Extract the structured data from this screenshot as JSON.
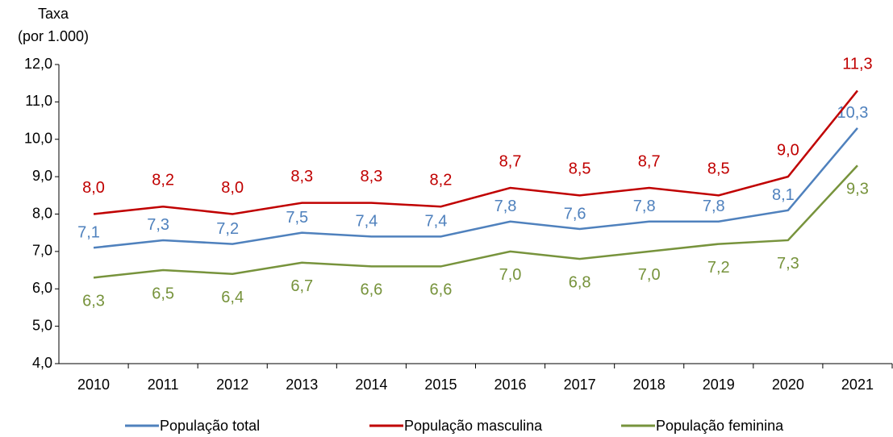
{
  "chart_data": {
    "type": "line",
    "y_label": [
      "Taxa",
      "(por 1.000)"
    ],
    "categories": [
      "2010",
      "2011",
      "2012",
      "2013",
      "2014",
      "2015",
      "2016",
      "2017",
      "2018",
      "2019",
      "2020",
      "2021"
    ],
    "series": [
      {
        "name": "População total",
        "color": "#4f81bd",
        "values": [
          7.1,
          7.3,
          7.2,
          7.5,
          7.4,
          7.4,
          7.8,
          7.6,
          7.8,
          7.8,
          8.1,
          10.3
        ],
        "value_labels": [
          "7,1",
          "7,3",
          "7,2",
          "7,5",
          "7,4",
          "7,4",
          "7,8",
          "7,6",
          "7,8",
          "7,8",
          "8,1",
          "10,3"
        ]
      },
      {
        "name": "População masculina",
        "color": "#c00000",
        "values": [
          8.0,
          8.2,
          8.0,
          8.3,
          8.3,
          8.2,
          8.7,
          8.5,
          8.7,
          8.5,
          9.0,
          11.3
        ],
        "value_labels": [
          "8,0",
          "8,2",
          "8,0",
          "8,3",
          "8,3",
          "8,2",
          "8,7",
          "8,5",
          "8,7",
          "8,5",
          "9,0",
          "11,3"
        ]
      },
      {
        "name": "População feminina",
        "color": "#77933c",
        "values": [
          6.3,
          6.5,
          6.4,
          6.7,
          6.6,
          6.6,
          7.0,
          6.8,
          7.0,
          7.2,
          7.3,
          9.3
        ],
        "value_labels": [
          "6,3",
          "6,5",
          "6,4",
          "6,7",
          "6,6",
          "6,6",
          "7,0",
          "6,8",
          "7,0",
          "7,2",
          "7,3",
          "9,3"
        ]
      }
    ],
    "ylim": [
      4,
      12
    ],
    "yticks": [
      {
        "value": 4,
        "label": "4,0"
      },
      {
        "value": 5,
        "label": "5,0"
      },
      {
        "value": 6,
        "label": "6,0"
      },
      {
        "value": 7,
        "label": "7,0"
      },
      {
        "value": 8,
        "label": "8,0"
      },
      {
        "value": 9,
        "label": "9,0"
      },
      {
        "value": 10,
        "label": "10,0"
      },
      {
        "value": 11,
        "label": "11,0"
      },
      {
        "value": 12,
        "label": "12,0"
      }
    ],
    "grid": false,
    "legend": "bottom"
  }
}
